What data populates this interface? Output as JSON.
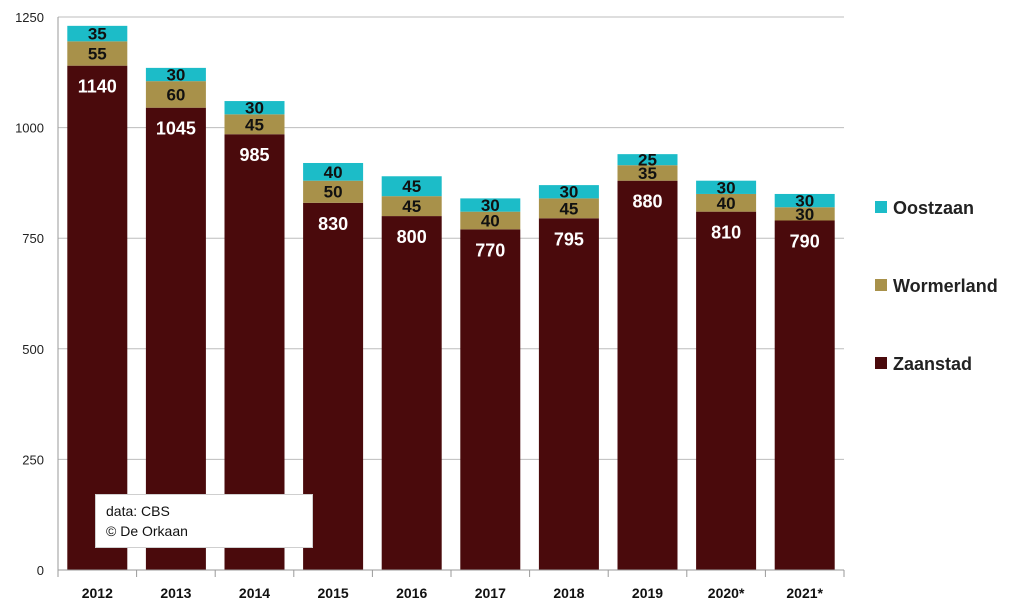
{
  "chart_data": {
    "type": "bar",
    "stacked": true,
    "title": "",
    "xlabel": "",
    "ylabel": "",
    "ylim": [
      0,
      1250
    ],
    "yticks": [
      0,
      250,
      500,
      750,
      1000,
      1250
    ],
    "grid": true,
    "legend_position": "right",
    "categories": [
      "2012",
      "2013",
      "2014",
      "2015",
      "2016",
      "2017",
      "2018",
      "2019",
      "2020*",
      "2021*"
    ],
    "series": [
      {
        "name": "Zaanstad",
        "color": "#4a0a0c",
        "label_color": "#ffffff",
        "values": [
          1140,
          1045,
          985,
          830,
          800,
          770,
          795,
          880,
          810,
          790
        ]
      },
      {
        "name": "Wormerland",
        "color": "#a8914a",
        "label_color": "#111111",
        "values": [
          55,
          60,
          45,
          50,
          45,
          40,
          45,
          35,
          40,
          30
        ]
      },
      {
        "name": "Oostzaan",
        "color": "#1cbcc8",
        "label_color": "#111111",
        "values": [
          35,
          30,
          30,
          40,
          45,
          30,
          30,
          25,
          30,
          30
        ]
      }
    ]
  },
  "note": {
    "line1": "data:  CBS",
    "line2": "© De Orkaan"
  }
}
